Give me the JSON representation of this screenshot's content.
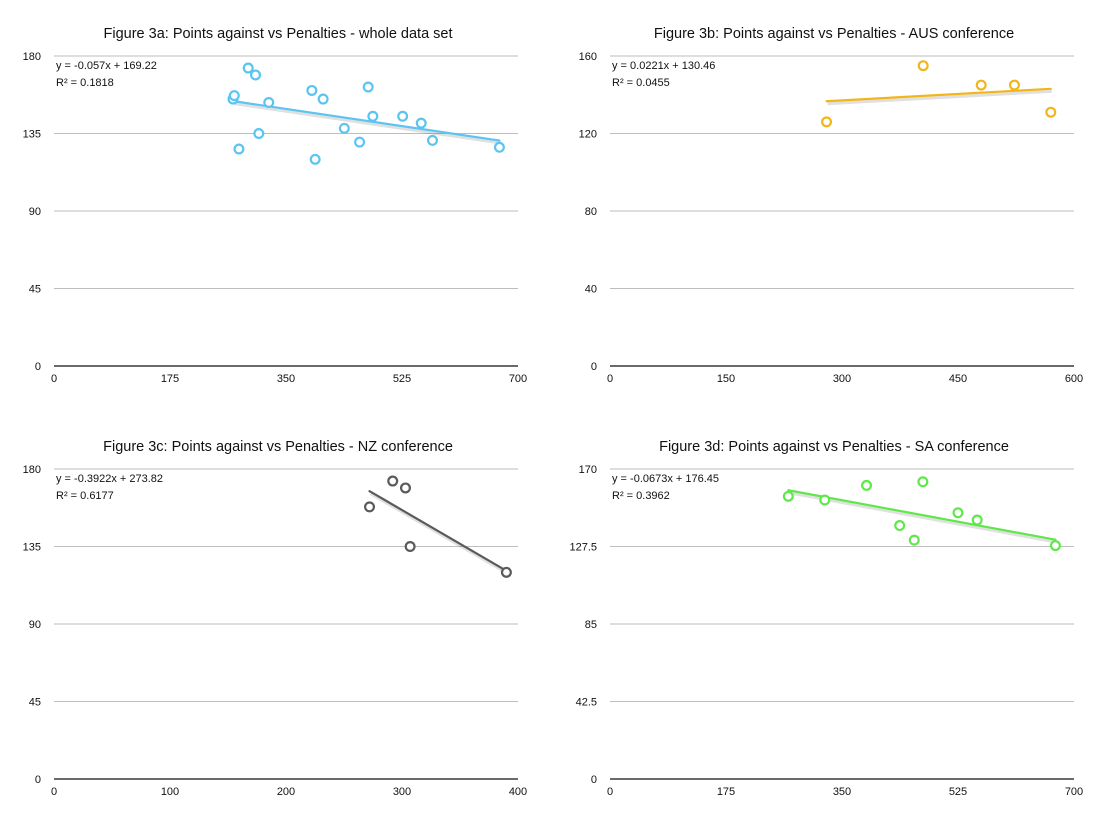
{
  "chart_data": [
    {
      "type": "scatter",
      "title": "Figure 3a: Points against vs Penalties - whole data set",
      "xlabel": "",
      "ylabel": "",
      "xlim": [
        0,
        700
      ],
      "ylim": [
        0,
        180
      ],
      "xticks": [
        "0",
        "175",
        "350",
        "525",
        "700"
      ],
      "yticks": [
        "0",
        "45",
        "90",
        "135",
        "180"
      ],
      "grid": true,
      "color": "#5ac4f2",
      "trendline": {
        "slope": -0.057,
        "intercept": 169.22,
        "x_range": [
          270,
          672
        ]
      },
      "equation": "y = -0.057x + 169.22",
      "r_squared": "R² = 0.1818",
      "points": [
        {
          "x": 270,
          "y": 155
        },
        {
          "x": 272,
          "y": 157
        },
        {
          "x": 279,
          "y": 126
        },
        {
          "x": 293,
          "y": 173
        },
        {
          "x": 304,
          "y": 169
        },
        {
          "x": 309,
          "y": 135
        },
        {
          "x": 324,
          "y": 153
        },
        {
          "x": 389,
          "y": 160
        },
        {
          "x": 394,
          "y": 120
        },
        {
          "x": 406,
          "y": 155
        },
        {
          "x": 438,
          "y": 138
        },
        {
          "x": 461,
          "y": 130
        },
        {
          "x": 474,
          "y": 162
        },
        {
          "x": 481,
          "y": 145
        },
        {
          "x": 526,
          "y": 145
        },
        {
          "x": 554,
          "y": 141
        },
        {
          "x": 571,
          "y": 131
        },
        {
          "x": 672,
          "y": 127
        }
      ]
    },
    {
      "type": "scatter",
      "title": "Figure 3b: Points against vs Penalties - AUS conference",
      "xlabel": "",
      "ylabel": "",
      "xlim": [
        0,
        600
      ],
      "ylim": [
        0,
        160
      ],
      "xticks": [
        "0",
        "150",
        "300",
        "450",
        "600"
      ],
      "yticks": [
        "0",
        "40",
        "80",
        "120",
        "160"
      ],
      "grid": true,
      "color": "#f2b61a",
      "trendline": {
        "slope": 0.0221,
        "intercept": 130.46,
        "x_range": [
          280,
          570
        ]
      },
      "equation": "y = 0.0221x + 130.46",
      "r_squared": "R² = 0.0455",
      "points": [
        {
          "x": 280,
          "y": 126
        },
        {
          "x": 405,
          "y": 155
        },
        {
          "x": 480,
          "y": 145
        },
        {
          "x": 523,
          "y": 145
        },
        {
          "x": 570,
          "y": 131
        }
      ]
    },
    {
      "type": "scatter",
      "title": "Figure 3c: Points against vs Penalties - NZ conference",
      "xlabel": "",
      "ylabel": "",
      "xlim": [
        0,
        400
      ],
      "ylim": [
        0,
        180
      ],
      "xticks": [
        "0",
        "100",
        "200",
        "300",
        "400"
      ],
      "yticks": [
        "0",
        "45",
        "90",
        "135",
        "180"
      ],
      "grid": true,
      "color": "#5a5a5a",
      "trendline": {
        "slope": -0.3922,
        "intercept": 273.82,
        "x_range": [
          272,
          390
        ]
      },
      "equation": "y = -0.3922x + 273.82",
      "r_squared": "R² = 0.6177",
      "points": [
        {
          "x": 272,
          "y": 158
        },
        {
          "x": 292,
          "y": 173
        },
        {
          "x": 303,
          "y": 169
        },
        {
          "x": 307,
          "y": 135
        },
        {
          "x": 390,
          "y": 120
        }
      ]
    },
    {
      "type": "scatter",
      "title": "Figure 3d: Points against vs Penalties - SA conference",
      "xlabel": "",
      "ylabel": "",
      "xlim": [
        0,
        700
      ],
      "ylim": [
        0,
        170
      ],
      "xticks": [
        "0",
        "175",
        "350",
        "525",
        "700"
      ],
      "yticks": [
        "0",
        "42.5",
        "85",
        "127.5",
        "170"
      ],
      "grid": true,
      "color": "#5fe84a",
      "trendline": {
        "slope": -0.0673,
        "intercept": 176.45,
        "x_range": [
          269,
          672
        ]
      },
      "equation": "y = -0.0673x + 176.45",
      "r_squared": "R² = 0.3962",
      "points": [
        {
          "x": 269,
          "y": 155
        },
        {
          "x": 324,
          "y": 153
        },
        {
          "x": 387,
          "y": 161
        },
        {
          "x": 437,
          "y": 139
        },
        {
          "x": 459,
          "y": 131
        },
        {
          "x": 472,
          "y": 163
        },
        {
          "x": 525,
          "y": 146
        },
        {
          "x": 554,
          "y": 142
        },
        {
          "x": 672,
          "y": 128
        }
      ]
    }
  ]
}
